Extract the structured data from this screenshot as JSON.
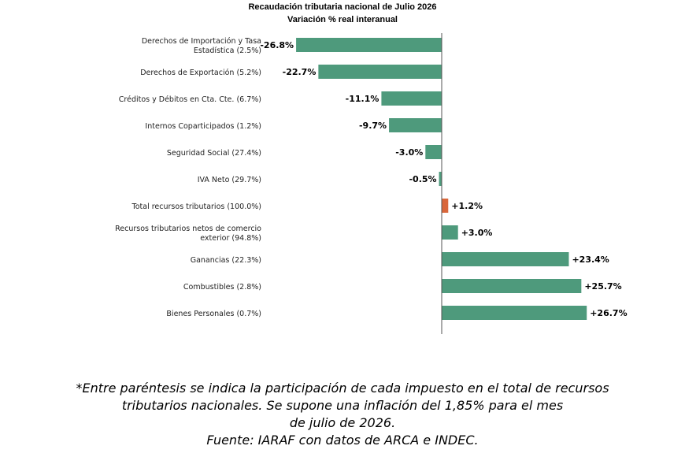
{
  "chart_data": {
    "type": "bar",
    "orientation": "horizontal",
    "title": "Recaudación tributaria nacional de Julio 2026",
    "subtitle": "Variación % real interanual",
    "categories": [
      [
        "Derechos de Importación y Tasa",
        "Estadística (2.5%)"
      ],
      [
        "Derechos de Exportación (5.2%)"
      ],
      [
        "Créditos y Débitos en Cta. Cte. (6.7%)"
      ],
      [
        "Internos Coparticipados (1.2%)"
      ],
      [
        "Seguridad Social (27.4%)"
      ],
      [
        "IVA Neto (29.7%)"
      ],
      [
        "Total recursos tributarios (100.0%)"
      ],
      [
        "Recursos tributarios netos de comercio",
        "exterior (94.8%)"
      ],
      [
        "Ganancias (22.3%)"
      ],
      [
        "Combustibles (2.8%)"
      ],
      [
        "Bienes Personales (0.7%)"
      ]
    ],
    "values": [
      -26.8,
      -22.7,
      -11.1,
      -9.7,
      -3.0,
      -0.5,
      1.2,
      3.0,
      23.4,
      25.7,
      26.7
    ],
    "data_labels": [
      "-26.8%",
      "-22.7%",
      "-11.1%",
      "-9.7%",
      "-3.0%",
      "-0.5%",
      "+1.2%",
      "+3.0%",
      "+23.4%",
      "+25.7%",
      "+26.7%"
    ],
    "highlight_index": 6,
    "colors": {
      "bar": "#4e9a7c",
      "highlight": "#d9673b",
      "axis": "#555555",
      "text": "#222222"
    },
    "grid": false,
    "legend": "none"
  },
  "footnote": {
    "lines": [
      "*Entre paréntesis se indica la participación de cada impuesto en el total de recursos",
      "tributarios nacionales. Se supone una inflación del 1,85% para el mes",
      "de julio de 2026.",
      "Fuente: IARAF con datos de ARCA e INDEC."
    ]
  }
}
